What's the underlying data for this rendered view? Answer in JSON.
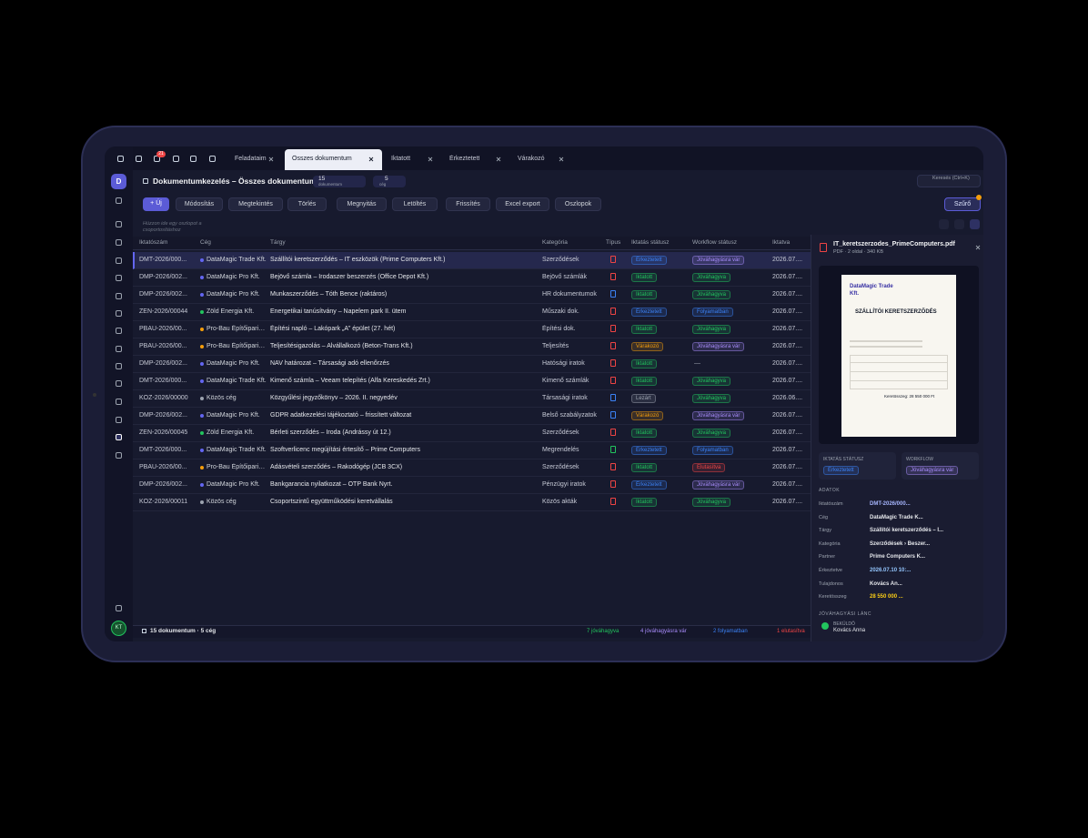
{
  "topbar": {
    "badge": "21",
    "tabs": [
      "Feladataim",
      "Összes dokumentum",
      "Iktatott",
      "Érkeztetett",
      "Várakozó"
    ],
    "active_tab": 1,
    "search": "Keresés (Ctrl+K)"
  },
  "header": {
    "logo": "D",
    "title": "Dokumentumkezelés – Összes dokumentum",
    "count": "15",
    "count_label": "dokumentum",
    "company_count": "5",
    "company_label": "cég"
  },
  "toolbar": {
    "buttons": [
      "+ Új",
      "Módosítás",
      "Megtekintés",
      "Törlés",
      "Megnyitás",
      "Letöltés",
      "Frissítés",
      "Excel export",
      "Oszlopok"
    ],
    "filter": "Szűrő"
  },
  "group_hint": "Húzzon ide egy oszlopot a csoportosításhoz",
  "table": {
    "columns": [
      "Iktatószám",
      "Cég",
      "Tárgy",
      "Kategória",
      "Típus",
      "Iktatás státusz",
      "Workflow státusz",
      "Iktatva"
    ],
    "rows": [
      {
        "id": "DMT-2026/000...",
        "company": "DataMagic Trade Kft.",
        "company_color": "#6366f1",
        "subject": "Szállítói keretszerződés – IT eszközök (Prime Computers Kft.)",
        "category": "Szerződések",
        "type_color": "#ef4444",
        "status": {
          "label": "Érkeztetett",
          "color": "#3b82f6"
        },
        "workflow": {
          "label": "Jóváhagyásra vár",
          "color": "#a78bfa"
        },
        "date": "2026.07...."
      },
      {
        "id": "DMP-2026/002...",
        "company": "DataMagic Pro Kft.",
        "company_color": "#6366f1",
        "subject": "Bejövő számla – Irodaszer beszerzés (Office Depot Kft.)",
        "category": "Bejövő számlák",
        "type_color": "#ef4444",
        "status": {
          "label": "Iktatott",
          "color": "#22c55e"
        },
        "workflow": {
          "label": "Jóváhagyva",
          "color": "#22c55e"
        },
        "date": "2026.07...."
      },
      {
        "id": "DMP-2026/002...",
        "company": "DataMagic Pro Kft.",
        "company_color": "#6366f1",
        "subject": "Munkaszerződés – Tóth Bence (raktáros)",
        "category": "HR dokumentumok",
        "type_color": "#3b82f6",
        "status": {
          "label": "Iktatott",
          "color": "#22c55e"
        },
        "workflow": {
          "label": "Jóváhagyva",
          "color": "#22c55e"
        },
        "date": "2026.07...."
      },
      {
        "id": "ZEN-2026/00044",
        "company": "Zöld Energia Kft.",
        "company_color": "#22c55e",
        "subject": "Energetikai tanúsítvány – Napelem park II. ütem",
        "category": "Műszaki dok.",
        "type_color": "#ef4444",
        "status": {
          "label": "Érkeztetett",
          "color": "#3b82f6"
        },
        "workflow": {
          "label": "Folyamatban",
          "color": "#3b82f6"
        },
        "date": "2026.07...."
      },
      {
        "id": "PBAU-2026/00...",
        "company": "Pro-Bau Építőipari Kft",
        "company_color": "#f59e0b",
        "subject": "Építési napló – Lakópark „A” épület (27. hét)",
        "category": "Építési dok.",
        "type_color": "#ef4444",
        "status": {
          "label": "Iktatott",
          "color": "#22c55e"
        },
        "workflow": {
          "label": "Jóváhagyva",
          "color": "#22c55e"
        },
        "date": "2026.07...."
      },
      {
        "id": "PBAU-2026/00...",
        "company": "Pro-Bau Építőipari Kft",
        "company_color": "#f59e0b",
        "subject": "Teljesítésigazolás – Alvállalkozó (Beton-Trans Kft.)",
        "category": "Teljesítés",
        "type_color": "#ef4444",
        "status": {
          "label": "Várakozó",
          "color": "#f59e0b"
        },
        "workflow": {
          "label": "Jóváhagyásra vár",
          "color": "#a78bfa"
        },
        "date": "2026.07...."
      },
      {
        "id": "DMP-2026/002...",
        "company": "DataMagic Pro Kft.",
        "company_color": "#6366f1",
        "subject": "NAV határozat – Társasági adó ellenőrzés",
        "category": "Hatósági iratok",
        "type_color": "#ef4444",
        "status": {
          "label": "Iktatott",
          "color": "#22c55e"
        },
        "workflow": "—",
        "date": "2026.07...."
      },
      {
        "id": "DMT-2026/000...",
        "company": "DataMagic Trade Kft.",
        "company_color": "#6366f1",
        "subject": "Kimenő számla – Veeam telepítés (Alfa Kereskedés Zrt.)",
        "category": "Kimenő számlák",
        "type_color": "#ef4444",
        "status": {
          "label": "Iktatott",
          "color": "#22c55e"
        },
        "workflow": {
          "label": "Jóváhagyva",
          "color": "#22c55e"
        },
        "date": "2026.07...."
      },
      {
        "id": "KOZ-2026/00000",
        "company": "Közös cég",
        "company_color": "#9ca3af",
        "subject": "Közgyűlési jegyzőkönyv – 2026. II. negyedév",
        "category": "Társasági iratok",
        "type_color": "#3b82f6",
        "status": {
          "label": "Lezárt",
          "color": "#9ca3af"
        },
        "workflow": {
          "label": "Jóváhagyva",
          "color": "#22c55e"
        },
        "date": "2026.06...."
      },
      {
        "id": "DMP-2026/002...",
        "company": "DataMagic Pro Kft.",
        "company_color": "#6366f1",
        "subject": "GDPR adatkezelési tájékoztató – frissített változat",
        "category": "Belső szabályzatok",
        "type_color": "#3b82f6",
        "status": {
          "label": "Várakozó",
          "color": "#f59e0b"
        },
        "workflow": {
          "label": "Jóváhagyásra vár",
          "color": "#a78bfa"
        },
        "date": "2026.07...."
      },
      {
        "id": "ZEN-2026/00045",
        "company": "Zöld Energia Kft.",
        "company_color": "#22c55e",
        "subject": "Bérleti szerződés – Iroda (Andrássy út 12.)",
        "category": "Szerződések",
        "type_color": "#ef4444",
        "status": {
          "label": "Iktatott",
          "color": "#22c55e"
        },
        "workflow": {
          "label": "Jóváhagyva",
          "color": "#22c55e"
        },
        "date": "2026.07...."
      },
      {
        "id": "DMT-2026/000...",
        "company": "DataMagic Trade Kft.",
        "company_color": "#6366f1",
        "subject": "Szoftverlicenc megújítási értesítő – Prime Computers",
        "category": "Megrendelés",
        "type_color": "#22c55e",
        "status": {
          "label": "Érkeztetett",
          "color": "#3b82f6"
        },
        "workflow": {
          "label": "Folyamatban",
          "color": "#3b82f6"
        },
        "date": "2026.07...."
      },
      {
        "id": "PBAU-2026/00...",
        "company": "Pro-Bau Építőipari Kft",
        "company_color": "#f59e0b",
        "subject": "Adásvételi szerződés – Rakodógép (JCB 3CX)",
        "category": "Szerződések",
        "type_color": "#ef4444",
        "status": {
          "label": "Iktatott",
          "color": "#22c55e"
        },
        "workflow": {
          "label": "Elutasítva",
          "color": "#ef4444"
        },
        "date": "2026.07...."
      },
      {
        "id": "DMP-2026/002...",
        "company": "DataMagic Pro Kft.",
        "company_color": "#6366f1",
        "subject": "Bankgarancia nyilatkozat – OTP Bank Nyrt.",
        "category": "Pénzügyi iratok",
        "type_color": "#ef4444",
        "status": {
          "label": "Érkeztetett",
          "color": "#3b82f6"
        },
        "workflow": {
          "label": "Jóváhagyásra vár",
          "color": "#a78bfa"
        },
        "date": "2026.07...."
      },
      {
        "id": "KOZ-2026/00011",
        "company": "Közös cég",
        "company_color": "#9ca3af",
        "subject": "Csoportszintű együttműködési keretvállalás",
        "category": "Közös akták",
        "type_color": "#ef4444",
        "status": {
          "label": "Iktatott",
          "color": "#22c55e"
        },
        "workflow": {
          "label": "Jóváhagyva",
          "color": "#22c55e"
        },
        "date": "2026.07...."
      }
    ]
  },
  "statusbar": {
    "summary": "15 dokumentum · 5 cég",
    "counts": [
      {
        "label": "7 jóváhagyva",
        "color": "#22c55e"
      },
      {
        "label": "4 jóváhagyásra vár",
        "color": "#a78bfa"
      },
      {
        "label": "2 folyamatban",
        "color": "#3b82f6"
      },
      {
        "label": "1 elutasítva",
        "color": "#ef4444"
      }
    ]
  },
  "preview": {
    "file": "IT_keretszerzodes_PrimeComputers.pdf",
    "meta": "PDF · 2 oldal · 340 KB",
    "doc": {
      "company": "DataMagic Trade Kft.",
      "title": "SZÁLLÍTÓI KERETSZERZŐDÉS",
      "total": "Keretösszeg: 28 550 000 Ft"
    },
    "status_label": "IKTATÁS STÁTUSZ",
    "status": {
      "label": "Érkeztetett",
      "color": "#3b82f6"
    },
    "workflow_label": "WORKFLOW",
    "workflow": {
      "label": "Jóváhagyásra vár",
      "color": "#a78bfa"
    },
    "data_label": "ADATOK",
    "fields": [
      {
        "label": "Iktatószám",
        "value": "DMT-2026/000...",
        "color": "#a5b4fc"
      },
      {
        "label": "Cég",
        "value": "DataMagic Trade K...",
        "color": "#e5e7eb"
      },
      {
        "label": "Tárgy",
        "value": "Szállítói keretszerződés – I...",
        "color": "#e5e7eb"
      },
      {
        "label": "Kategória",
        "value": "Szerződések › Beszer...",
        "color": "#e5e7eb"
      },
      {
        "label": "Partner",
        "value": "Prime Computers K...",
        "color": "#e5e7eb"
      },
      {
        "label": "Érkeztetve",
        "value": "2026.07.10 10:...",
        "color": "#93c5fd"
      },
      {
        "label": "Tulajdonos",
        "value": "Kovács An...",
        "color": "#e5e7eb"
      },
      {
        "label": "Keretösszeg",
        "value": "28 550 000 ...",
        "color": "#facc15"
      }
    ],
    "chain_label": "JÓVÁHAGYÁSI LÁNC",
    "chain_role": "BEKÜLDŐ",
    "chain_person": "Kovács Anna"
  },
  "user": "KT"
}
